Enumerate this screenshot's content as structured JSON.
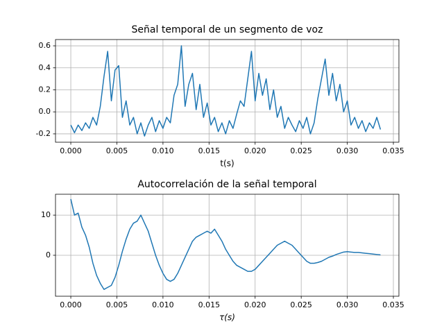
{
  "chart_data": [
    {
      "type": "line",
      "title": "Señal temporal de un segmento de voz",
      "x_label": "t(s)",
      "color": "#1f77b4",
      "grid": true,
      "xlim": [
        -0.00166,
        0.0356
      ],
      "ylim": [
        -0.276,
        0.657
      ],
      "xticks": [
        {
          "value": 0,
          "label": "0.000"
        },
        0.005,
        {
          "value": 0.01,
          "label": "0.010"
        },
        0.015,
        {
          "value": 0.02,
          "label": "0.020"
        },
        0.025,
        {
          "value": 0.03,
          "label": "0.030"
        },
        0.035
      ],
      "yticks": [
        -0.2,
        {
          "value": 0,
          "label": "0.0"
        },
        0.2,
        0.4,
        0.6
      ],
      "x": [
        0,
        0.0004,
        0.0008,
        0.0012,
        0.0016,
        0.002,
        0.0024,
        0.0028,
        0.0032,
        0.0036,
        0.004,
        0.0044,
        0.0048,
        0.0052,
        0.0056,
        0.006,
        0.0064,
        0.0068,
        0.0072,
        0.0076,
        0.008,
        0.0084,
        0.0088,
        0.0092,
        0.0096,
        0.01,
        0.0104,
        0.0108,
        0.0112,
        0.0116,
        0.012,
        0.0124,
        0.0128,
        0.0132,
        0.0136,
        0.014,
        0.0144,
        0.0148,
        0.0152,
        0.0156,
        0.016,
        0.0164,
        0.0168,
        0.0172,
        0.0176,
        0.018,
        0.0184,
        0.0188,
        0.0192,
        0.0196,
        0.02,
        0.0204,
        0.0208,
        0.0212,
        0.0216,
        0.022,
        0.0224,
        0.0228,
        0.0232,
        0.0236,
        0.024,
        0.0244,
        0.0248,
        0.0252,
        0.0256,
        0.026,
        0.0264,
        0.0268,
        0.0272,
        0.0276,
        0.028,
        0.0284,
        0.0288,
        0.0292,
        0.0296,
        0.03,
        0.0304,
        0.0308,
        0.0312,
        0.0316,
        0.032,
        0.0324,
        0.0328,
        0.0332,
        0.0336
      ],
      "values": [
        -0.12,
        -0.19,
        -0.12,
        -0.17,
        -0.1,
        -0.15,
        -0.05,
        -0.12,
        0.05,
        0.32,
        0.55,
        0.1,
        0.38,
        0.42,
        -0.05,
        0.1,
        -0.12,
        -0.05,
        -0.2,
        -0.1,
        -0.22,
        -0.12,
        -0.05,
        -0.18,
        -0.08,
        -0.15,
        -0.05,
        -0.1,
        0.15,
        0.25,
        0.6,
        0.05,
        0.25,
        0.35,
        0.02,
        0.25,
        -0.05,
        0.08,
        -0.12,
        -0.05,
        -0.18,
        -0.1,
        -0.2,
        -0.08,
        -0.15,
        -0.02,
        0.1,
        0.05,
        0.3,
        0.55,
        0.1,
        0.35,
        0.15,
        0.3,
        0.02,
        0.2,
        -0.05,
        0.05,
        -0.15,
        -0.05,
        -0.12,
        -0.18,
        -0.08,
        -0.15,
        -0.05,
        -0.2,
        -0.1,
        0.12,
        0.3,
        0.48,
        0.15,
        0.35,
        0.1,
        0.25,
        0,
        0.1,
        -0.12,
        -0.05,
        -0.15,
        -0.08,
        -0.18,
        -0.1,
        -0.15,
        -0.05,
        -0.16
      ]
    },
    {
      "type": "line",
      "title": "Autocorrelación de la señal temporal",
      "x_label": "τ(s)",
      "color": "#1f77b4",
      "grid": true,
      "xlim": [
        -0.00166,
        0.0356
      ],
      "ylim": [
        -10.2,
        15.2
      ],
      "xticks": [
        {
          "value": 0,
          "label": "0.000"
        },
        0.005,
        {
          "value": 0.01,
          "label": "0.010"
        },
        0.015,
        {
          "value": 0.02,
          "label": "0.020"
        },
        0.025,
        {
          "value": 0.03,
          "label": "0.030"
        },
        0.035
      ],
      "yticks": [
        0,
        10
      ],
      "x": [
        0,
        0.0004,
        0.0008,
        0.0012,
        0.0016,
        0.002,
        0.0024,
        0.0028,
        0.0032,
        0.0036,
        0.004,
        0.0044,
        0.0048,
        0.0052,
        0.0056,
        0.006,
        0.0064,
        0.0068,
        0.0072,
        0.0076,
        0.008,
        0.0084,
        0.0088,
        0.0092,
        0.0096,
        0.01,
        0.0104,
        0.0108,
        0.0112,
        0.0116,
        0.012,
        0.0124,
        0.0128,
        0.0132,
        0.0136,
        0.014,
        0.0144,
        0.0148,
        0.0152,
        0.0156,
        0.016,
        0.0164,
        0.0168,
        0.0172,
        0.0176,
        0.018,
        0.0184,
        0.0188,
        0.0192,
        0.0196,
        0.02,
        0.0204,
        0.0208,
        0.0212,
        0.0216,
        0.022,
        0.0224,
        0.0228,
        0.0232,
        0.0236,
        0.024,
        0.0244,
        0.0248,
        0.0252,
        0.0256,
        0.026,
        0.0264,
        0.0268,
        0.0272,
        0.0276,
        0.028,
        0.0284,
        0.0288,
        0.0292,
        0.0296,
        0.03,
        0.0304,
        0.0308,
        0.0312,
        0.0316,
        0.032,
        0.0324,
        0.0328,
        0.0332,
        0.0336
      ],
      "values": [
        14,
        10,
        10.5,
        7,
        5,
        2,
        -2,
        -5,
        -7,
        -8.5,
        -8,
        -7.5,
        -5.5,
        -2.5,
        1,
        4,
        6.5,
        8,
        8.5,
        10,
        8,
        6,
        3,
        0,
        -2.5,
        -4.5,
        -6,
        -6.5,
        -6,
        -4.5,
        -2.5,
        -0.5,
        1.5,
        3.5,
        4.5,
        5,
        5.5,
        6,
        5.5,
        6.5,
        5,
        3.5,
        1.5,
        0,
        -1.5,
        -2.5,
        -3,
        -3.5,
        -4,
        -4,
        -3.5,
        -2.5,
        -1.5,
        -0.5,
        0.5,
        1.5,
        2.5,
        3,
        3.5,
        3,
        2.5,
        1.5,
        0.5,
        -0.5,
        -1.5,
        -2,
        -2,
        -1.8,
        -1.5,
        -1,
        -0.5,
        -0.2,
        0.2,
        0.5,
        0.8,
        0.9,
        0.8,
        0.7,
        0.7,
        0.6,
        0.5,
        0.4,
        0.3,
        0.2,
        0.1
      ]
    }
  ]
}
